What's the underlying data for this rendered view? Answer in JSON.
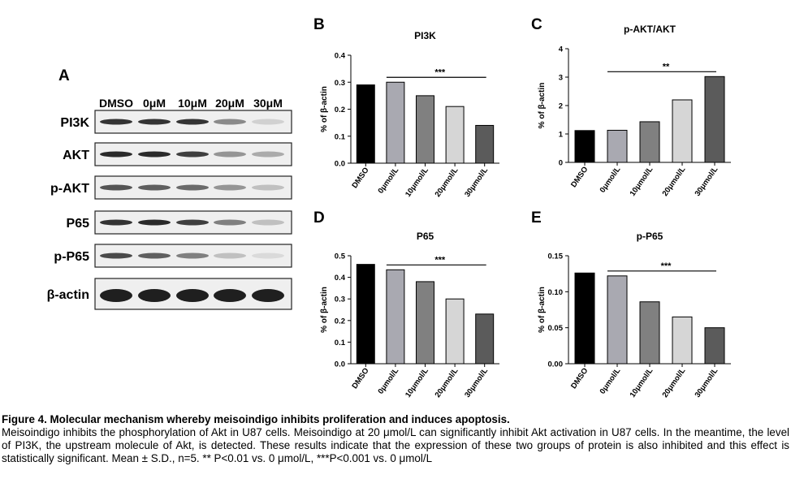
{
  "panel_a": {
    "letter": "A",
    "lanes": [
      "DMSO",
      "0μM",
      "10μM",
      "20μM",
      "30μM"
    ],
    "rows": [
      {
        "label": "PI3K",
        "intensities": [
          0.85,
          0.85,
          0.85,
          0.45,
          0.12
        ]
      },
      {
        "label": "AKT",
        "intensities": [
          0.9,
          0.9,
          0.8,
          0.4,
          0.3
        ]
      },
      {
        "label": "p-AKT",
        "intensities": [
          0.7,
          0.65,
          0.6,
          0.4,
          0.2
        ]
      },
      {
        "label": "P65",
        "intensities": [
          0.85,
          0.9,
          0.8,
          0.5,
          0.2
        ]
      },
      {
        "label": "p-P65",
        "intensities": [
          0.75,
          0.65,
          0.5,
          0.2,
          0.08
        ]
      },
      {
        "label": "β-actin",
        "intensities": [
          0.95,
          0.95,
          0.95,
          0.95,
          0.95
        ]
      }
    ]
  },
  "chart_data": [
    {
      "letter": "B",
      "type": "bar",
      "title": "PI3K",
      "ylabel": "% of β-actin",
      "categories": [
        "DMSO",
        "0μmol/L",
        "10μmol/L",
        "20μmol/L",
        "30μmol/L"
      ],
      "values": [
        0.29,
        0.3,
        0.25,
        0.21,
        0.14
      ],
      "colors": [
        "#000000",
        "#a9a9b1",
        "#808080",
        "#d6d6d6",
        "#5b5b5b"
      ],
      "ylim": [
        0.0,
        0.4
      ],
      "yticks": [
        "0.0",
        "0.1",
        "0.2",
        "0.3",
        "0.4"
      ],
      "significance": {
        "label": "***",
        "from": 1,
        "to": 4
      }
    },
    {
      "letter": "C",
      "type": "bar",
      "title": "p-AKT/AKT",
      "ylabel": "% of β-actin",
      "categories": [
        "DMSO",
        "0μmol/L",
        "10μmol/L",
        "20μmol/L",
        "30μmol/L"
      ],
      "values": [
        1.12,
        1.13,
        1.43,
        2.2,
        3.02
      ],
      "colors": [
        "#000000",
        "#a9a9b1",
        "#808080",
        "#d6d6d6",
        "#5b5b5b"
      ],
      "ylim": [
        0,
        4
      ],
      "yticks": [
        "0",
        "1",
        "2",
        "3",
        "4"
      ],
      "significance": {
        "label": "**",
        "from": 1,
        "to": 4
      }
    },
    {
      "letter": "D",
      "type": "bar",
      "title": "P65",
      "ylabel": "% of β-actin",
      "categories": [
        "DMSO",
        "0μmol/L",
        "10μmol/L",
        "20μmol/L",
        "30μmol/L"
      ],
      "values": [
        0.46,
        0.435,
        0.38,
        0.3,
        0.23
      ],
      "colors": [
        "#000000",
        "#a9a9b1",
        "#808080",
        "#d6d6d6",
        "#5b5b5b"
      ],
      "ylim": [
        0.0,
        0.5
      ],
      "yticks": [
        "0.0",
        "0.1",
        "0.2",
        "0.3",
        "0.4",
        "0.5"
      ],
      "significance": {
        "label": "***",
        "from": 1,
        "to": 4
      }
    },
    {
      "letter": "E",
      "type": "bar",
      "title": "p-P65",
      "ylabel": "% of β-actin",
      "categories": [
        "DMSO",
        "0μmol/L",
        "10μmol/L",
        "20μmol/L",
        "30μmol/L"
      ],
      "values": [
        0.126,
        0.122,
        0.086,
        0.065,
        0.05
      ],
      "colors": [
        "#000000",
        "#a9a9b1",
        "#808080",
        "#d6d6d6",
        "#5b5b5b"
      ],
      "ylim": [
        0.0,
        0.15
      ],
      "yticks": [
        "0.00",
        "0.05",
        "0.10",
        "0.15"
      ],
      "significance": {
        "label": "***",
        "from": 1,
        "to": 4
      }
    }
  ],
  "caption": {
    "title": "Figure 4. Molecular mechanism whereby meisoindigo inhibits proliferation and induces apoptosis.",
    "body": "Meisoindigo inhibits the phosphorylation of Akt in U87 cells. Meisoindigo at 20 μmol/L can significantly inhibit Akt activation in U87 cells. In the meantime, the level of PI3K, the upstream molecule of Akt, is detected. These results indicate that the expression of these two groups of protein is also inhibited and this effect is statistically significant. Mean ± S.D., n=5. ** P<0.01 vs. 0 μmol/L, ***P<0.001 vs. 0 μmol/L"
  }
}
